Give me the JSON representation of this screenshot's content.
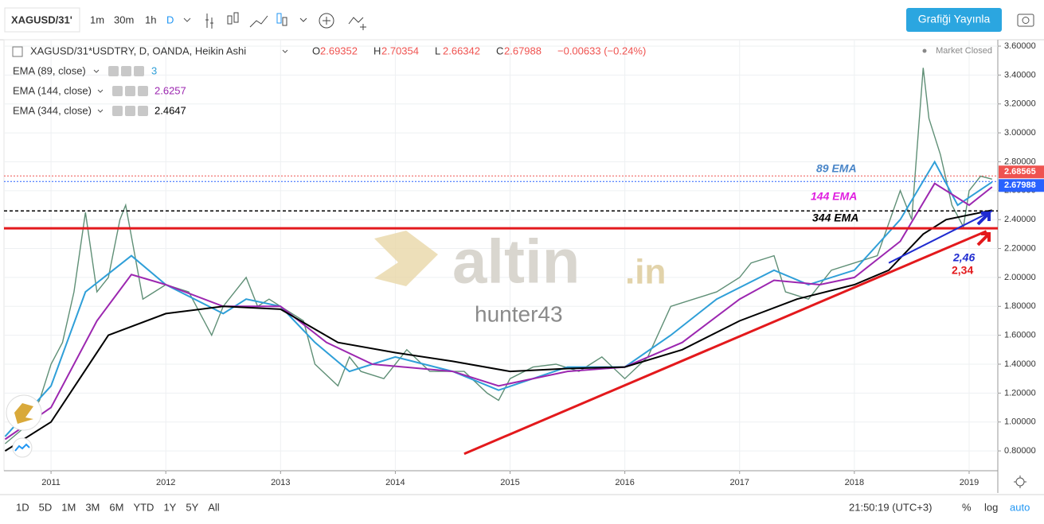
{
  "toolbar": {
    "symbol": "XAGUSD/31'",
    "intervals": [
      "1m",
      "30m",
      "1h",
      "D"
    ],
    "publish": "Grafiği Yayınla"
  },
  "legend": {
    "ohlc": [
      {
        "label": "O",
        "value": "2.69352"
      },
      {
        "label": "H",
        "value": "2.70354"
      },
      {
        "label": "L",
        "value": "2.66342"
      },
      {
        "label": "C",
        "value": "2.67988"
      }
    ],
    "change": "−0.00633 (−0.24%)",
    "indicator_values": [
      "3",
      "2.6257",
      "2.4647"
    ]
  },
  "market_status": "Market Closed",
  "chart_data": {
    "type": "line",
    "xlim": [
      2010.59,
      2019.25
    ],
    "ylim": [
      0.663,
      3.644
    ],
    "xticks": [
      2011,
      2012,
      2013,
      2014,
      2015,
      2016,
      2017,
      2018,
      2019
    ],
    "yticks": [
      {
        "value": 0.8,
        "label": "0.80000"
      },
      {
        "value": 1.0,
        "label": "1.00000"
      },
      {
        "value": 1.2,
        "label": "1.20000"
      },
      {
        "value": 1.4,
        "label": "1.40000"
      },
      {
        "value": 1.6,
        "label": "1.60000"
      },
      {
        "value": 1.8,
        "label": "1.80000"
      },
      {
        "value": 2.0,
        "label": "2.00000"
      },
      {
        "value": 2.2,
        "label": "2.20000"
      },
      {
        "value": 2.4,
        "label": "2.40000"
      },
      {
        "value": 2.6,
        "label": "2.60000"
      },
      {
        "value": 2.8,
        "label": "2.80000"
      },
      {
        "value": 3.0,
        "label": "3.00000"
      },
      {
        "value": 3.2,
        "label": "3.20000"
      },
      {
        "value": 3.4,
        "label": "3.40000"
      },
      {
        "value": 3.6,
        "label": "3.60000"
      }
    ],
    "grid": true,
    "series": [
      {
        "name": "XAGUSD/31*USDTRY, D, OANDA, Heikin Ashi",
        "color": "#5f8f76",
        "x": [
          2010.6,
          2010.75,
          2010.9,
          2011.0,
          2011.1,
          2011.2,
          2011.3,
          2011.4,
          2011.5,
          2011.6,
          2011.65,
          2011.72,
          2011.8,
          2011.9,
          2012.0,
          2012.2,
          2012.3,
          2012.4,
          2012.5,
          2012.7,
          2012.8,
          2012.9,
          2013.0,
          2013.2,
          2013.3,
          2013.5,
          2013.6,
          2013.7,
          2013.9,
          2014.1,
          2014.3,
          2014.5,
          2014.6,
          2014.8,
          2014.9,
          2015.0,
          2015.2,
          2015.4,
          2015.6,
          2015.8,
          2016.0,
          2016.2,
          2016.4,
          2016.6,
          2016.8,
          2017.0,
          2017.1,
          2017.3,
          2017.4,
          2017.6,
          2017.8,
          2018.0,
          2018.2,
          2018.4,
          2018.5,
          2018.6,
          2018.65,
          2018.75,
          2018.85,
          2018.95,
          2019.0,
          2019.1,
          2019.2
        ],
        "values": [
          0.85,
          0.95,
          1.15,
          1.4,
          1.55,
          1.9,
          2.45,
          1.9,
          2.0,
          2.4,
          2.5,
          2.2,
          1.85,
          1.9,
          1.95,
          1.9,
          1.75,
          1.6,
          1.8,
          2.0,
          1.8,
          1.85,
          1.8,
          1.7,
          1.4,
          1.25,
          1.45,
          1.35,
          1.3,
          1.5,
          1.35,
          1.35,
          1.35,
          1.2,
          1.15,
          1.3,
          1.38,
          1.4,
          1.35,
          1.45,
          1.3,
          1.45,
          1.8,
          1.85,
          1.9,
          2.0,
          2.1,
          2.15,
          1.9,
          1.85,
          2.05,
          2.1,
          2.15,
          2.6,
          2.4,
          3.45,
          3.1,
          2.85,
          2.5,
          2.35,
          2.6,
          2.7,
          2.68
        ]
      },
      {
        "name": "EMA (89, close)",
        "color": "#2f9fd8",
        "x": [
          2010.6,
          2011.0,
          2011.3,
          2011.7,
          2012.0,
          2012.5,
          2012.7,
          2013.0,
          2013.3,
          2013.6,
          2014.0,
          2014.5,
          2014.9,
          2015.5,
          2016.0,
          2016.4,
          2016.8,
          2017.3,
          2017.6,
          2018.0,
          2018.4,
          2018.7,
          2018.9,
          2019.2
        ],
        "values": [
          0.9,
          1.25,
          1.9,
          2.15,
          1.95,
          1.75,
          1.85,
          1.8,
          1.55,
          1.35,
          1.45,
          1.35,
          1.22,
          1.38,
          1.38,
          1.6,
          1.85,
          2.05,
          1.95,
          2.05,
          2.4,
          2.8,
          2.5,
          2.66
        ]
      },
      {
        "name": "EMA (144, close)",
        "color": "#9c27b0",
        "x": [
          2010.6,
          2011.0,
          2011.4,
          2011.7,
          2012.0,
          2012.5,
          2013.0,
          2013.4,
          2013.8,
          2014.5,
          2014.9,
          2015.5,
          2016.0,
          2016.5,
          2017.0,
          2017.3,
          2017.7,
          2018.0,
          2018.4,
          2018.7,
          2019.0,
          2019.2
        ],
        "values": [
          0.88,
          1.1,
          1.7,
          2.02,
          1.95,
          1.8,
          1.8,
          1.55,
          1.4,
          1.35,
          1.25,
          1.35,
          1.38,
          1.55,
          1.85,
          1.98,
          1.95,
          2.0,
          2.25,
          2.65,
          2.5,
          2.6257
        ]
      },
      {
        "name": "EMA (344, close)",
        "color": "#000000",
        "x": [
          2010.6,
          2011.0,
          2011.5,
          2012.0,
          2012.5,
          2013.0,
          2013.5,
          2014.0,
          2014.5,
          2015.0,
          2015.5,
          2016.0,
          2016.5,
          2017.0,
          2017.5,
          2018.0,
          2018.3,
          2018.6,
          2018.8,
          2019.2
        ],
        "values": [
          0.8,
          1.0,
          1.6,
          1.75,
          1.8,
          1.78,
          1.55,
          1.48,
          1.42,
          1.35,
          1.37,
          1.38,
          1.5,
          1.7,
          1.85,
          1.95,
          2.05,
          2.3,
          2.4,
          2.4647
        ]
      }
    ],
    "levels": [
      {
        "value": 2.46,
        "color": "#000000"
      },
      {
        "value": 2.34,
        "color": "#e3191c"
      }
    ],
    "trendlines": [
      {
        "color": "#e3191c",
        "x": [
          2014.6,
          2019.15
        ],
        "values": [
          0.78,
          2.32
        ]
      },
      {
        "color": "#1f2bd0",
        "x": [
          2018.3,
          2019.2
        ],
        "values": [
          2.1,
          2.46
        ]
      }
    ],
    "price_tags": [
      {
        "value": 2.68565,
        "color": "#ef5350"
      },
      {
        "value": 2.67988,
        "color": "#2962ff"
      }
    ],
    "annotations": [
      "89 EMA",
      "144 EMA",
      "344 EMA",
      "2,46",
      "2,34"
    ],
    "watermark": [
      "altin",
      ".in",
      "hunter43"
    ]
  },
  "bottom_bar": {
    "ranges": [
      "1D",
      "5D",
      "1M",
      "3M",
      "6M",
      "YTD",
      "1Y",
      "5Y",
      "All"
    ],
    "clock": "21:50:19 (UTC+3)",
    "options": [
      "%",
      "log",
      "auto"
    ]
  }
}
